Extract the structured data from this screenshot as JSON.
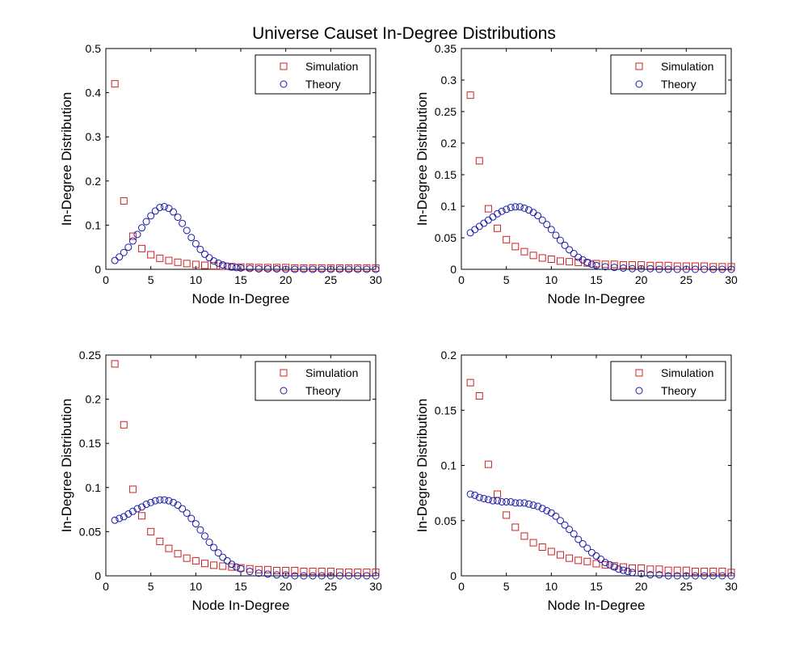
{
  "figure": {
    "title": "Universe Causet In-Degree Distributions"
  },
  "colors": {
    "simulation": "#cc2222",
    "theory": "#1a1aaa",
    "axes": "#000000",
    "background": "#ffffff"
  },
  "chart_data": [
    {
      "type": "scatter",
      "xlabel": "Node In-Degree",
      "ylabel": "In-Degree Distribution",
      "xlim": [
        0,
        30
      ],
      "ylim": [
        0,
        0.5
      ],
      "xticks": [
        0,
        5,
        10,
        15,
        20,
        25,
        30
      ],
      "yticks": [
        0,
        0.1,
        0.2,
        0.3,
        0.4,
        0.5
      ],
      "ytick_labels": [
        "0",
        "0.1",
        "0.2",
        "0.3",
        "0.4",
        "0.5"
      ],
      "legend": "top-right",
      "grid": false,
      "series": [
        {
          "name": "Simulation",
          "marker": "square",
          "x": [
            1,
            2,
            3,
            4,
            5,
            6,
            7,
            8,
            9,
            10,
            11,
            12,
            13,
            14,
            15,
            16,
            17,
            18,
            19,
            20,
            21,
            22,
            23,
            24,
            25,
            26,
            27,
            28,
            29,
            30
          ],
          "y": [
            0.42,
            0.155,
            0.075,
            0.047,
            0.033,
            0.025,
            0.02,
            0.016,
            0.013,
            0.011,
            0.009,
            0.008,
            0.007,
            0.006,
            0.005,
            0.005,
            0.004,
            0.004,
            0.004,
            0.004,
            0.003,
            0.003,
            0.003,
            0.003,
            0.003,
            0.003,
            0.003,
            0.003,
            0.003,
            0.003
          ]
        },
        {
          "name": "Theory",
          "marker": "circle",
          "x": [
            1,
            1.5,
            2,
            2.5,
            3,
            3.5,
            4,
            4.5,
            5,
            5.5,
            6,
            6.5,
            7,
            7.5,
            8,
            8.5,
            9,
            9.5,
            10,
            10.5,
            11,
            11.5,
            12,
            12.5,
            13,
            13.5,
            14,
            14.5,
            15,
            16,
            17,
            18,
            19,
            20,
            21,
            22,
            23,
            24,
            25,
            26,
            27,
            28,
            29,
            30
          ],
          "y": [
            0.02,
            0.028,
            0.038,
            0.05,
            0.064,
            0.079,
            0.094,
            0.108,
            0.121,
            0.132,
            0.14,
            0.142,
            0.138,
            0.13,
            0.118,
            0.104,
            0.088,
            0.072,
            0.058,
            0.045,
            0.034,
            0.026,
            0.019,
            0.014,
            0.01,
            0.007,
            0.005,
            0.004,
            0.003,
            0.002,
            0.001,
            0.001,
            0.001,
            0,
            0,
            0,
            0,
            0,
            0,
            0,
            0,
            0,
            0,
            0
          ]
        }
      ]
    },
    {
      "type": "scatter",
      "xlabel": "Node In-Degree",
      "ylabel": "In-Degree Distribution",
      "xlim": [
        0,
        30
      ],
      "ylim": [
        0,
        0.35
      ],
      "xticks": [
        0,
        5,
        10,
        15,
        20,
        25,
        30
      ],
      "yticks": [
        0,
        0.05,
        0.1,
        0.15,
        0.2,
        0.25,
        0.3,
        0.35
      ],
      "ytick_labels": [
        "0",
        "0.05",
        "0.1",
        "0.15",
        "0.2",
        "0.25",
        "0.3",
        "0.35"
      ],
      "legend": "top-right",
      "grid": false,
      "series": [
        {
          "name": "Simulation",
          "marker": "square",
          "x": [
            1,
            2,
            3,
            4,
            5,
            6,
            7,
            8,
            9,
            10,
            11,
            12,
            13,
            14,
            15,
            16,
            17,
            18,
            19,
            20,
            21,
            22,
            23,
            24,
            25,
            26,
            27,
            28,
            29,
            30
          ],
          "y": [
            0.276,
            0.172,
            0.096,
            0.065,
            0.047,
            0.036,
            0.028,
            0.022,
            0.018,
            0.016,
            0.013,
            0.012,
            0.011,
            0.01,
            0.009,
            0.008,
            0.008,
            0.007,
            0.007,
            0.007,
            0.006,
            0.006,
            0.006,
            0.005,
            0.005,
            0.005,
            0.005,
            0.004,
            0.004,
            0.004
          ]
        },
        {
          "name": "Theory",
          "marker": "circle",
          "x": [
            1,
            1.5,
            2,
            2.5,
            3,
            3.5,
            4,
            4.5,
            5,
            5.5,
            6,
            6.5,
            7,
            7.5,
            8,
            8.5,
            9,
            9.5,
            10,
            10.5,
            11,
            11.5,
            12,
            12.5,
            13,
            13.5,
            14,
            14.5,
            15,
            16,
            17,
            18,
            19,
            20,
            21,
            22,
            23,
            24,
            25,
            26,
            27,
            28,
            29,
            30
          ],
          "y": [
            0.058,
            0.063,
            0.068,
            0.073,
            0.078,
            0.083,
            0.088,
            0.092,
            0.095,
            0.098,
            0.099,
            0.099,
            0.097,
            0.094,
            0.09,
            0.085,
            0.078,
            0.071,
            0.063,
            0.054,
            0.046,
            0.038,
            0.031,
            0.025,
            0.019,
            0.015,
            0.011,
            0.008,
            0.006,
            0.004,
            0.003,
            0.002,
            0.001,
            0.001,
            0.001,
            0,
            0,
            0,
            0,
            0,
            0,
            0,
            0,
            0
          ]
        }
      ]
    },
    {
      "type": "scatter",
      "xlabel": "Node In-Degree",
      "ylabel": "In-Degree Distribution",
      "xlim": [
        0,
        30
      ],
      "ylim": [
        0,
        0.25
      ],
      "xticks": [
        0,
        5,
        10,
        15,
        20,
        25,
        30
      ],
      "yticks": [
        0,
        0.05,
        0.1,
        0.15,
        0.2,
        0.25
      ],
      "ytick_labels": [
        "0",
        "0.05",
        "0.1",
        "0.15",
        "0.2",
        "0.25"
      ],
      "legend": "top-right",
      "grid": false,
      "series": [
        {
          "name": "Simulation",
          "marker": "square",
          "x": [
            1,
            2,
            3,
            4,
            5,
            6,
            7,
            8,
            9,
            10,
            11,
            12,
            13,
            14,
            15,
            16,
            17,
            18,
            19,
            20,
            21,
            22,
            23,
            24,
            25,
            26,
            27,
            28,
            29,
            30
          ],
          "y": [
            0.24,
            0.171,
            0.098,
            0.068,
            0.05,
            0.039,
            0.031,
            0.025,
            0.02,
            0.017,
            0.014,
            0.012,
            0.011,
            0.01,
            0.009,
            0.008,
            0.007,
            0.007,
            0.006,
            0.006,
            0.006,
            0.005,
            0.005,
            0.005,
            0.005,
            0.004,
            0.004,
            0.004,
            0.004,
            0.004
          ]
        },
        {
          "name": "Theory",
          "marker": "circle",
          "x": [
            1,
            1.5,
            2,
            2.5,
            3,
            3.5,
            4,
            4.5,
            5,
            5.5,
            6,
            6.5,
            7,
            7.5,
            8,
            8.5,
            9,
            9.5,
            10,
            10.5,
            11,
            11.5,
            12,
            12.5,
            13,
            13.5,
            14,
            14.5,
            15,
            16,
            17,
            18,
            19,
            20,
            21,
            22,
            23,
            24,
            25,
            26,
            27,
            28,
            29,
            30
          ],
          "y": [
            0.063,
            0.065,
            0.067,
            0.07,
            0.073,
            0.076,
            0.078,
            0.081,
            0.083,
            0.085,
            0.086,
            0.086,
            0.085,
            0.083,
            0.08,
            0.076,
            0.071,
            0.065,
            0.059,
            0.052,
            0.045,
            0.038,
            0.032,
            0.026,
            0.021,
            0.017,
            0.013,
            0.01,
            0.008,
            0.005,
            0.003,
            0.002,
            0.001,
            0.001,
            0,
            0,
            0,
            0,
            0,
            0,
            0,
            0,
            0,
            0
          ]
        }
      ]
    },
    {
      "type": "scatter",
      "xlabel": "Node In-Degree",
      "ylabel": "In-Degree Distribution",
      "xlim": [
        0,
        30
      ],
      "ylim": [
        0,
        0.2
      ],
      "xticks": [
        0,
        5,
        10,
        15,
        20,
        25,
        30
      ],
      "yticks": [
        0,
        0.05,
        0.1,
        0.15,
        0.2
      ],
      "ytick_labels": [
        "0",
        "0.05",
        "0.1",
        "0.15",
        "0.2"
      ],
      "legend": "top-right",
      "grid": false,
      "series": [
        {
          "name": "Simulation",
          "marker": "square",
          "x": [
            1,
            2,
            3,
            4,
            5,
            6,
            7,
            8,
            9,
            10,
            11,
            12,
            13,
            14,
            15,
            16,
            17,
            18,
            19,
            20,
            21,
            22,
            23,
            24,
            25,
            26,
            27,
            28,
            29,
            30
          ],
          "y": [
            0.175,
            0.163,
            0.101,
            0.074,
            0.055,
            0.044,
            0.036,
            0.03,
            0.026,
            0.022,
            0.019,
            0.016,
            0.014,
            0.013,
            0.011,
            0.01,
            0.009,
            0.008,
            0.007,
            0.007,
            0.006,
            0.006,
            0.005,
            0.005,
            0.005,
            0.004,
            0.004,
            0.004,
            0.004,
            0.003
          ]
        },
        {
          "name": "Theory",
          "marker": "circle",
          "x": [
            1,
            1.5,
            2,
            2.5,
            3,
            3.5,
            4,
            4.5,
            5,
            5.5,
            6,
            6.5,
            7,
            7.5,
            8,
            8.5,
            9,
            9.5,
            10,
            10.5,
            11,
            11.5,
            12,
            12.5,
            13,
            13.5,
            14,
            14.5,
            15,
            15.5,
            16,
            16.5,
            17,
            17.5,
            18,
            18.5,
            19,
            20,
            21,
            22,
            23,
            24,
            25,
            26,
            27,
            28,
            29,
            30
          ],
          "y": [
            0.074,
            0.073,
            0.071,
            0.07,
            0.069,
            0.068,
            0.068,
            0.067,
            0.067,
            0.067,
            0.066,
            0.066,
            0.066,
            0.065,
            0.064,
            0.063,
            0.061,
            0.059,
            0.057,
            0.054,
            0.05,
            0.046,
            0.042,
            0.038,
            0.033,
            0.029,
            0.025,
            0.021,
            0.018,
            0.015,
            0.012,
            0.01,
            0.008,
            0.006,
            0.005,
            0.004,
            0.003,
            0.002,
            0.001,
            0.001,
            0,
            0,
            0,
            0,
            0,
            0,
            0,
            0
          ]
        }
      ]
    }
  ]
}
